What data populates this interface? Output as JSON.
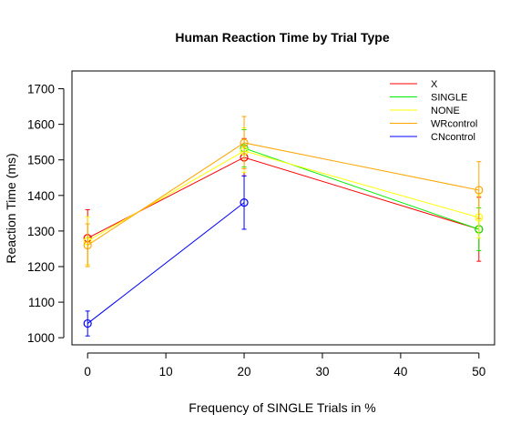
{
  "chart_data": {
    "type": "line",
    "title": "Human Reaction Time by Trial Type",
    "xlabel": "Frequency of SINGLE Trials in %",
    "ylabel": "Reaction Time (ms)",
    "xlim": [
      -2,
      52
    ],
    "ylim": [
      980,
      1750
    ],
    "xticks": [
      0,
      10,
      20,
      30,
      40,
      50
    ],
    "yticks": [
      1000,
      1100,
      1200,
      1300,
      1400,
      1500,
      1600,
      1700
    ],
    "legend": "top-right",
    "series": [
      {
        "name": "X",
        "color": "#ff0000",
        "points": [
          {
            "x": 0,
            "y": 1280,
            "lo": 1205,
            "hi": 1360
          },
          {
            "x": 20,
            "y": 1507,
            "lo": 1455,
            "hi": 1560
          },
          {
            "x": 50,
            "y": 1305,
            "lo": 1215,
            "hi": 1395
          }
        ]
      },
      {
        "name": "SINGLE",
        "color": "#00ee00",
        "points": [
          {
            "x": 20,
            "y": 1533,
            "lo": 1480,
            "hi": 1585
          },
          {
            "x": 50,
            "y": 1305,
            "lo": 1245,
            "hi": 1365
          }
        ]
      },
      {
        "name": "NONE",
        "color": "#ffff00",
        "points": [
          {
            "x": 0,
            "y": 1272,
            "lo": 1205,
            "hi": 1340
          },
          {
            "x": 20,
            "y": 1525,
            "lo": 1465,
            "hi": 1590
          },
          {
            "x": 50,
            "y": 1338,
            "lo": 1280,
            "hi": 1400
          }
        ]
      },
      {
        "name": "WRcontrol",
        "color": "#ffa500",
        "points": [
          {
            "x": 0,
            "y": 1260,
            "lo": 1200,
            "hi": 1320
          },
          {
            "x": 20,
            "y": 1548,
            "lo": 1475,
            "hi": 1622
          },
          {
            "x": 50,
            "y": 1415,
            "lo": 1335,
            "hi": 1495
          }
        ]
      },
      {
        "name": "CNcontrol",
        "color": "#0000ff",
        "points": [
          {
            "x": 0,
            "y": 1040,
            "lo": 1005,
            "hi": 1075
          },
          {
            "x": 20,
            "y": 1380,
            "lo": 1305,
            "hi": 1455
          }
        ]
      }
    ]
  }
}
